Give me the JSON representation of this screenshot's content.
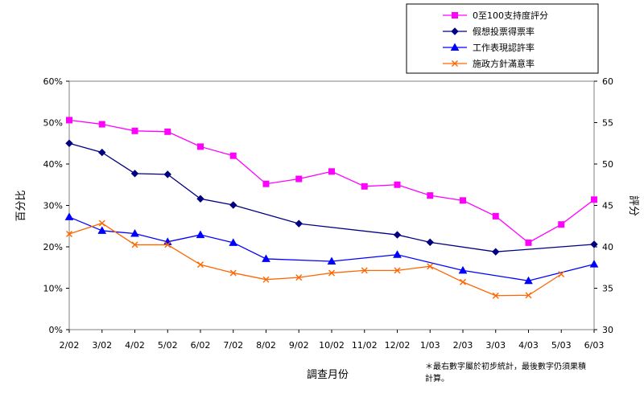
{
  "chart_data": {
    "type": "line",
    "x": [
      "2/02",
      "3/02",
      "4/02",
      "5/02",
      "6/02",
      "7/02",
      "8/02",
      "9/02",
      "10/02",
      "11/02",
      "12/02",
      "1/03",
      "2/03",
      "3/03",
      "4/03",
      "5/03",
      "6/03"
    ],
    "xlabel": "調查月份",
    "ylabel_left": "百分比",
    "ylabel_right": "評分",
    "ylim_left": [
      0,
      60
    ],
    "ylim_right": [
      30,
      60
    ],
    "yticks_left": [
      "0%",
      "10%",
      "20%",
      "30%",
      "40%",
      "50%",
      "60%"
    ],
    "yticks_right": [
      "30",
      "35",
      "40",
      "45",
      "50",
      "55",
      "60"
    ],
    "grid": false,
    "legend_position": "top-right",
    "series": [
      {
        "name": "0至100支持度評分",
        "axis": "right",
        "color": "#ff00ff",
        "marker": "square",
        "values": [
          55.3,
          54.8,
          54.0,
          53.9,
          52.1,
          51.0,
          47.6,
          48.2,
          49.1,
          47.3,
          47.5,
          46.2,
          45.6,
          43.7,
          40.5,
          42.7,
          45.7
        ]
      },
      {
        "name": "假想投票得票率",
        "axis": "left",
        "color": "#000080",
        "marker": "diamond",
        "values": [
          45.0,
          42.8,
          37.7,
          37.5,
          31.6,
          30.1,
          null,
          25.6,
          null,
          null,
          22.9,
          21.1,
          null,
          18.8,
          null,
          null,
          20.6
        ]
      },
      {
        "name": "工作表現認許率",
        "axis": "left",
        "color": "#0000ff",
        "marker": "triangle",
        "values": [
          27.2,
          23.9,
          23.2,
          21.2,
          22.9,
          21.0,
          17.1,
          null,
          16.5,
          null,
          18.1,
          null,
          14.3,
          null,
          11.8,
          null,
          15.8
        ]
      },
      {
        "name": "施政方針滿意率",
        "axis": "left",
        "color": "#ff6600",
        "marker": "x",
        "values": [
          23.1,
          25.7,
          20.5,
          20.5,
          15.7,
          13.7,
          12.1,
          12.6,
          13.7,
          14.3,
          14.3,
          15.3,
          11.5,
          8.2,
          8.3,
          13.4,
          null
        ]
      }
    ],
    "note": "＊最右數字屬於初步統計，最後數字仍須果積計算。"
  }
}
